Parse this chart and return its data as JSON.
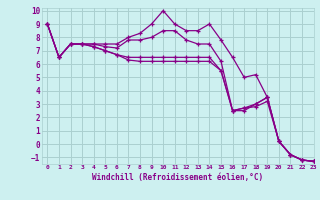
{
  "xlabel": "Windchill (Refroidissement éolien,°C)",
  "xlim": [
    -0.5,
    23
  ],
  "ylim": [
    -1.5,
    10.2
  ],
  "background_color": "#cdf0f0",
  "grid_color": "#aacfcf",
  "line_color": "#880088",
  "series": [
    [
      9,
      6.5,
      7.5,
      7.5,
      7.5,
      7.5,
      7.5,
      8.0,
      8.3,
      9.0,
      10.0,
      9.0,
      8.5,
      8.5,
      9.0,
      7.8,
      6.5,
      5.0,
      5.2,
      3.5,
      0.2,
      -0.8,
      -1.2,
      -1.3
    ],
    [
      9,
      6.5,
      7.5,
      7.5,
      7.5,
      7.3,
      7.2,
      7.8,
      7.8,
      8.0,
      8.5,
      8.5,
      7.8,
      7.5,
      7.5,
      6.2,
      2.5,
      2.7,
      2.8,
      3.2,
      0.2,
      -0.8,
      -1.2,
      -1.3
    ],
    [
      9,
      6.5,
      7.5,
      7.5,
      7.3,
      7.0,
      6.7,
      6.5,
      6.5,
      6.5,
      6.5,
      6.5,
      6.5,
      6.5,
      6.5,
      5.5,
      2.5,
      2.7,
      3.0,
      3.5,
      0.2,
      -0.8,
      -1.2,
      -1.3
    ],
    [
      9,
      6.5,
      7.5,
      7.5,
      7.3,
      7.0,
      6.7,
      6.3,
      6.2,
      6.2,
      6.2,
      6.2,
      6.2,
      6.2,
      6.2,
      5.5,
      2.5,
      2.5,
      3.0,
      3.5,
      0.2,
      -0.8,
      -1.2,
      -1.3
    ]
  ],
  "xticks": [
    0,
    1,
    2,
    3,
    4,
    5,
    6,
    7,
    8,
    9,
    10,
    11,
    12,
    13,
    14,
    15,
    16,
    17,
    18,
    19,
    20,
    21,
    22,
    23
  ],
  "yticks": [
    -1,
    0,
    1,
    2,
    3,
    4,
    5,
    6,
    7,
    8,
    9,
    10
  ],
  "marker": "+"
}
